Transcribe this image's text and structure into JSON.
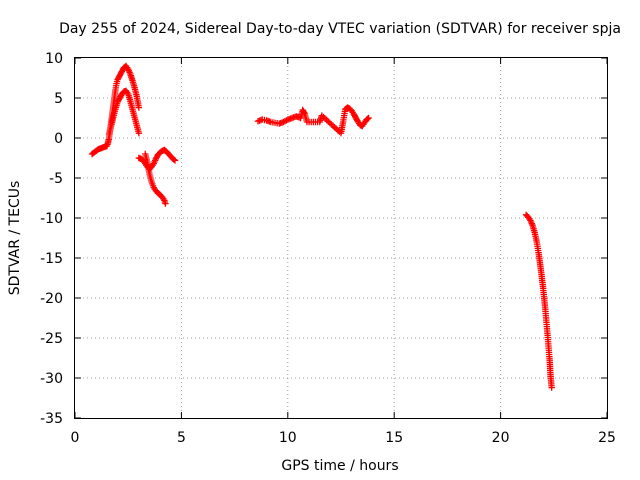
{
  "chart_data": {
    "type": "scatter",
    "title": "Day 255 of 2024, Sidereal Day-to-day VTEC variation (SDTVAR) for receiver spja",
    "xlabel": "GPS time / hours",
    "ylabel": "SDTVAR / TECUs",
    "xlim": [
      0,
      25
    ],
    "ylim": [
      -35,
      10
    ],
    "xticks": [
      "0",
      "5",
      "10",
      "15",
      "20",
      "25"
    ],
    "yticks": [
      "10",
      "5",
      "0",
      "-5",
      "-10",
      "-15",
      "-20",
      "-25",
      "-30",
      "-35"
    ],
    "grid": true,
    "marker": "plus",
    "color": "#ff0000",
    "segments": [
      [
        [
          0.8,
          -2.0
        ],
        [
          0.9,
          -1.8
        ],
        [
          1.0,
          -1.6
        ],
        [
          1.1,
          -1.4
        ],
        [
          1.2,
          -1.3
        ],
        [
          1.3,
          -1.2
        ],
        [
          1.4,
          -1.1
        ],
        [
          1.5,
          -1.0
        ],
        [
          1.55,
          -0.6
        ],
        [
          1.6,
          0.0
        ],
        [
          1.65,
          1.0
        ],
        [
          1.7,
          2.0
        ],
        [
          1.75,
          3.0
        ],
        [
          1.8,
          4.0
        ],
        [
          1.85,
          5.0
        ],
        [
          1.9,
          6.0
        ],
        [
          1.95,
          6.8
        ],
        [
          2.0,
          7.3
        ],
        [
          2.1,
          7.8
        ],
        [
          2.2,
          8.3
        ],
        [
          2.3,
          8.8
        ],
        [
          2.4,
          9.0
        ],
        [
          2.5,
          8.6
        ],
        [
          2.6,
          8.0
        ],
        [
          2.7,
          7.2
        ],
        [
          2.8,
          6.3
        ],
        [
          2.9,
          5.2
        ],
        [
          3.0,
          3.8
        ]
      ],
      [
        [
          1.6,
          0.5
        ],
        [
          1.7,
          1.5
        ],
        [
          1.8,
          2.6
        ],
        [
          1.9,
          3.6
        ],
        [
          2.0,
          4.5
        ],
        [
          2.1,
          5.0
        ],
        [
          2.2,
          5.5
        ],
        [
          2.3,
          5.8
        ],
        [
          2.4,
          5.9
        ],
        [
          2.5,
          5.5
        ],
        [
          2.6,
          4.6
        ],
        [
          2.7,
          3.6
        ],
        [
          2.8,
          2.6
        ],
        [
          2.9,
          1.6
        ],
        [
          3.0,
          0.6
        ]
      ],
      [
        [
          3.0,
          -2.5
        ],
        [
          3.1,
          -2.6
        ],
        [
          3.2,
          -2.8
        ],
        [
          3.3,
          -3.2
        ],
        [
          3.4,
          -3.6
        ],
        [
          3.5,
          -3.9
        ],
        [
          3.6,
          -3.6
        ],
        [
          3.7,
          -3.2
        ],
        [
          3.8,
          -2.6
        ],
        [
          3.9,
          -2.1
        ],
        [
          4.0,
          -1.8
        ],
        [
          4.1,
          -1.6
        ],
        [
          4.2,
          -1.5
        ],
        [
          4.3,
          -1.7
        ],
        [
          4.4,
          -2.0
        ],
        [
          4.5,
          -2.3
        ],
        [
          4.6,
          -2.6
        ],
        [
          4.7,
          -2.8
        ]
      ],
      [
        [
          3.3,
          -2.0
        ],
        [
          3.4,
          -3.0
        ],
        [
          3.5,
          -4.5
        ],
        [
          3.6,
          -5.5
        ],
        [
          3.7,
          -6.2
        ],
        [
          3.8,
          -6.6
        ],
        [
          3.9,
          -6.9
        ],
        [
          4.0,
          -7.1
        ],
        [
          4.1,
          -7.4
        ],
        [
          4.2,
          -7.8
        ],
        [
          4.25,
          -8.2
        ]
      ],
      [
        [
          8.6,
          2.1
        ],
        [
          8.8,
          2.3
        ],
        [
          9.0,
          2.2
        ],
        [
          9.2,
          2.0
        ],
        [
          9.4,
          1.9
        ],
        [
          9.6,
          1.8
        ],
        [
          9.8,
          2.0
        ],
        [
          10.0,
          2.3
        ],
        [
          10.2,
          2.5
        ],
        [
          10.4,
          2.7
        ],
        [
          10.6,
          2.5
        ],
        [
          10.7,
          3.5
        ],
        [
          10.8,
          3.0
        ],
        [
          10.9,
          2.0
        ],
        [
          11.5,
          2.0
        ],
        [
          11.6,
          2.8
        ],
        [
          12.5,
          0.6
        ],
        [
          12.6,
          2.0
        ],
        [
          12.7,
          3.6
        ],
        [
          12.8,
          3.8
        ],
        [
          12.9,
          3.7
        ],
        [
          13.0,
          3.4
        ],
        [
          13.1,
          3.0
        ],
        [
          13.2,
          2.5
        ],
        [
          13.3,
          2.0
        ],
        [
          13.4,
          1.6
        ],
        [
          13.5,
          1.5
        ],
        [
          13.6,
          1.9
        ],
        [
          13.7,
          2.3
        ],
        [
          13.8,
          2.5
        ]
      ],
      [
        [
          21.2,
          -9.6
        ],
        [
          21.3,
          -9.9
        ],
        [
          21.4,
          -10.3
        ],
        [
          21.5,
          -10.9
        ],
        [
          21.6,
          -11.8
        ],
        [
          21.7,
          -13.0
        ],
        [
          21.8,
          -14.6
        ],
        [
          21.9,
          -16.6
        ],
        [
          22.0,
          -18.8
        ],
        [
          22.1,
          -21.4
        ],
        [
          22.2,
          -24.4
        ],
        [
          22.3,
          -27.6
        ],
        [
          22.35,
          -29.8
        ],
        [
          22.4,
          -31.2
        ]
      ]
    ]
  }
}
